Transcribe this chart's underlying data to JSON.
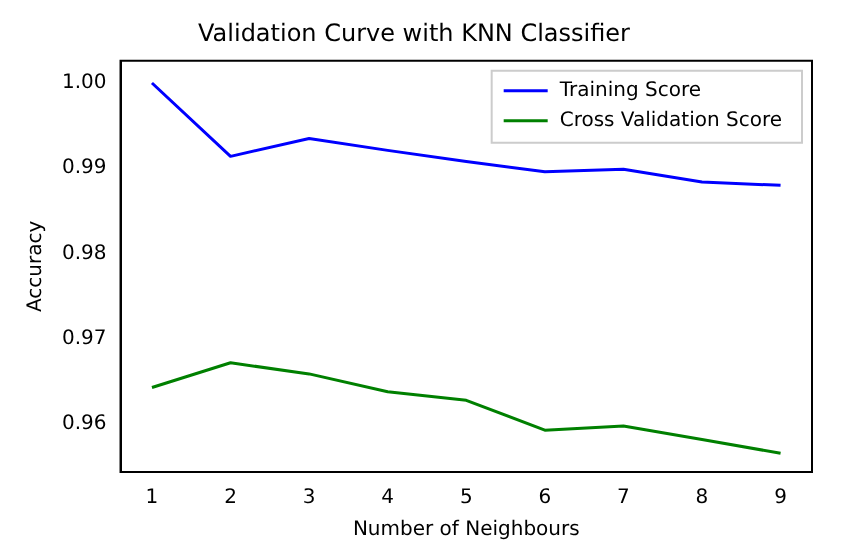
{
  "chart_data": {
    "type": "line",
    "title": "Validation Curve with KNN Classifier",
    "xlabel": "Number of Neighbours",
    "ylabel": "Accuracy",
    "x": [
      1,
      2,
      3,
      4,
      5,
      6,
      7,
      8,
      9
    ],
    "series": [
      {
        "name": "Training Score",
        "color": "#0000ff",
        "values": [
          1.0,
          0.9914,
          0.9935,
          0.9921,
          0.9908,
          0.9896,
          0.9899,
          0.9884,
          0.988
        ]
      },
      {
        "name": "Cross Validation Score",
        "color": "#008000",
        "values": [
          0.9643,
          0.9672,
          0.9659,
          0.9638,
          0.9628,
          0.9593,
          0.9598,
          0.9582,
          0.9566
        ]
      }
    ],
    "xlim": [
      0.6,
      9.4
    ],
    "xticks": [
      1,
      2,
      3,
      4,
      5,
      6,
      7,
      8,
      9
    ],
    "ylim": [
      0.9544,
      1.0026
    ],
    "yticks": [
      {
        "value": 0.96,
        "label": "0.96"
      },
      {
        "value": 0.97,
        "label": "0.97"
      },
      {
        "value": 0.98,
        "label": "0.98"
      },
      {
        "value": 0.99,
        "label": "0.99"
      },
      {
        "value": 1.0,
        "label": "1.00"
      }
    ],
    "legend": "top right",
    "grid": false,
    "marker": "none",
    "line_style": "solid"
  }
}
